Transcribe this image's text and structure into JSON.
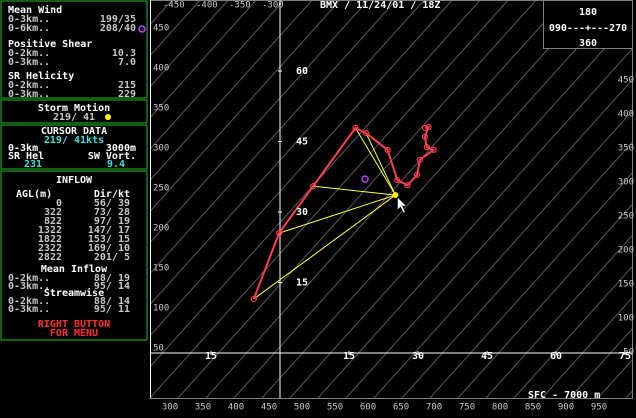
{
  "panel": {
    "mean_wind": {
      "title": "Mean Wind",
      "rows": [
        [
          "0-3km..",
          "199/35"
        ],
        [
          "0-6km..",
          "208/40"
        ]
      ]
    },
    "positive_shear": {
      "title": "Positive Shear",
      "rows": [
        [
          "0-2km..",
          "10.3"
        ],
        [
          "0-3km..",
          "7.0"
        ]
      ]
    },
    "sr_helicity": {
      "title": "SR Helicity",
      "rows": [
        [
          "0-2km..",
          "215"
        ],
        [
          "0-3km..",
          "229"
        ]
      ]
    },
    "storm_motion": {
      "title": "Storm Motion",
      "value": "219/ 41"
    },
    "cursor_data": {
      "title": "CURSOR DATA",
      "wind": "219/ 41kts",
      "layer": "0-3km",
      "height": "3000m",
      "hel_label": "SR Hel",
      "vort_label": "SW Vort.",
      "hel": "231",
      "vort": "9.4"
    },
    "inflow": {
      "title": "INFLOW",
      "col_agl": "AGL(m)",
      "col_dir": "Dir/kt",
      "rows": [
        [
          "0",
          "56/ 39"
        ],
        [
          "322",
          "73/ 28"
        ],
        [
          "822",
          "97/ 19"
        ],
        [
          "1322",
          "147/ 17"
        ],
        [
          "1822",
          "153/ 15"
        ],
        [
          "2322",
          "169/ 10"
        ],
        [
          "2822",
          "201/  5"
        ]
      ],
      "mean_title": "Mean Inflow",
      "mean_rows": [
        [
          "0-2km..",
          "88/ 19"
        ],
        [
          "0-3km..",
          "95/ 14"
        ]
      ],
      "stream_title": "Streamwise",
      "stream_rows": [
        [
          "0-2km..",
          "88/ 14"
        ],
        [
          "0-3km..",
          "95/ 11"
        ]
      ]
    },
    "menu_hint": [
      "RIGHT BUTTON",
      "FOR MENU"
    ]
  },
  "header": {
    "title": "BMX / 11/24/01 / 18Z"
  },
  "compass": {
    "top": "180",
    "middle": "090---+---270",
    "bottom": "360"
  },
  "footer": {
    "layer": "SFC - 7000 m"
  },
  "frame_labels": {
    "top": [
      "-450",
      "-400",
      "-350",
      "-300"
    ],
    "left": [
      "450",
      "400",
      "350",
      "300",
      "250",
      "200",
      "150",
      "100",
      "50"
    ],
    "right": [
      "450",
      "400",
      "350",
      "300",
      "250",
      "200",
      "150",
      "100",
      "50"
    ],
    "bottom": [
      "300",
      "350",
      "400",
      "450",
      "500",
      "550",
      "600",
      "650",
      "700",
      "750",
      "800",
      "850",
      "900",
      "950"
    ]
  },
  "hodograph": {
    "xticks": [
      {
        "value": -15,
        "label": "15"
      },
      15,
      30,
      45,
      60,
      75
    ],
    "yticks": [
      15,
      30,
      45,
      60
    ],
    "u": [
      -5.7,
      -0.2,
      7.2,
      16.4,
      18.7,
      23.4,
      25.5,
      27.7,
      29.8,
      30.4,
      33.4,
      31.9,
      31.5,
      32.3,
      31.5
    ],
    "v": [
      11.5,
      25.5,
      35.5,
      47.9,
      46.8,
      43.2,
      36.8,
      35.7,
      37.9,
      41.1,
      43.2,
      43.8,
      46.0,
      48.1,
      47.9
    ],
    "storm": {
      "u": 25.1,
      "v": 33.6
    },
    "mean_wind": {
      "u": 18.5,
      "v": 37.0
    }
  }
}
